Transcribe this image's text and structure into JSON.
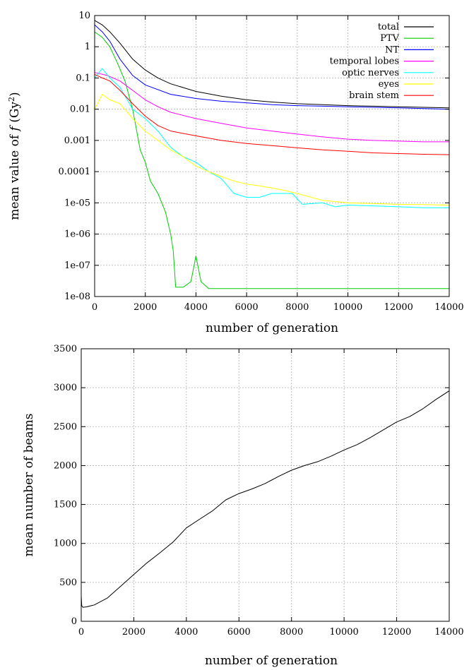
{
  "chart_data": [
    {
      "type": "line",
      "yscale": "log",
      "title": "",
      "xlabel": "number of generation",
      "ylabel": "mean value of f (Gy²)",
      "ylabel_parts": {
        "pre": "mean value of ",
        "var": "f",
        "unit_open": " (Gy",
        "unit_sup": "2",
        "unit_close": ")"
      },
      "xlim": [
        0,
        14000
      ],
      "ylim": [
        1e-08,
        10
      ],
      "grid": true,
      "legend_position": "top-right",
      "x_ticks": [
        0,
        2000,
        4000,
        6000,
        8000,
        10000,
        12000,
        14000
      ],
      "x_tick_labels": [
        "0",
        "2000",
        "4000",
        "6000",
        "8000",
        "10000",
        "12000",
        "14000"
      ],
      "y_ticks": [
        1e-08,
        1e-07,
        1e-06,
        1e-05,
        0.0001,
        0.001,
        0.01,
        0.1,
        1,
        10
      ],
      "y_tick_labels": [
        "1e-08",
        "1e-07",
        "1e-06",
        "1e-05",
        "0.0001",
        "0.001",
        "0.01",
        "0.1",
        "1",
        "10"
      ],
      "series": [
        {
          "name": "total",
          "color": "#000000",
          "x": [
            0,
            300,
            600,
            1000,
            1500,
            2000,
            2500,
            3000,
            4000,
            5000,
            6000,
            7000,
            8000,
            9000,
            10000,
            11000,
            12000,
            13000,
            14000
          ],
          "y": [
            7,
            5,
            3,
            1.3,
            0.4,
            0.18,
            0.1,
            0.065,
            0.037,
            0.026,
            0.02,
            0.017,
            0.015,
            0.014,
            0.013,
            0.0125,
            0.012,
            0.0115,
            0.011
          ]
        },
        {
          "name": "PTV",
          "color": "#00cc00",
          "x": [
            0,
            300,
            600,
            900,
            1200,
            1500,
            1800,
            2000,
            2200,
            2500,
            2800,
            3000,
            3100,
            3200,
            3500,
            3800,
            4000,
            4200,
            4500,
            5000,
            6000,
            7000,
            8000,
            9000,
            10000,
            11000,
            12000,
            13000,
            14000
          ],
          "y": [
            3,
            2,
            1,
            0.3,
            0.08,
            0.01,
            0.0005,
            0.0002,
            5e-05,
            2e-05,
            5e-06,
            1e-06,
            3e-07,
            2e-08,
            2e-08,
            3e-08,
            2e-07,
            3e-08,
            1.8e-08,
            1.8e-08,
            1.8e-08,
            1.8e-08,
            1.8e-08,
            1.8e-08,
            1.8e-08,
            1.8e-08,
            1.8e-08,
            1.8e-08,
            1.8e-08
          ]
        },
        {
          "name": "NT",
          "color": "#0000ff",
          "x": [
            0,
            300,
            600,
            1000,
            1500,
            2000,
            3000,
            4000,
            5000,
            6000,
            7000,
            8000,
            9000,
            10000,
            11000,
            12000,
            13000,
            14000
          ],
          "y": [
            5,
            3,
            1.5,
            0.4,
            0.12,
            0.06,
            0.03,
            0.022,
            0.018,
            0.016,
            0.014,
            0.013,
            0.0125,
            0.012,
            0.0115,
            0.011,
            0.0105,
            0.01
          ]
        },
        {
          "name": "temporal lobes",
          "color": "#ff00ff",
          "x": [
            0,
            500,
            1000,
            1500,
            2000,
            2500,
            3000,
            4000,
            5000,
            6000,
            7000,
            8000,
            9000,
            10000,
            11000,
            12000,
            13000,
            14000
          ],
          "y": [
            0.15,
            0.12,
            0.08,
            0.04,
            0.02,
            0.012,
            0.008,
            0.005,
            0.0035,
            0.0025,
            0.002,
            0.0016,
            0.0013,
            0.0011,
            0.001,
            0.00095,
            0.0009,
            0.0009
          ]
        },
        {
          "name": "optic nerves",
          "color": "#00ffff",
          "x": [
            0,
            300,
            600,
            1000,
            1500,
            2000,
            2500,
            3000,
            3500,
            4000,
            4500,
            5000,
            5500,
            6000,
            6500,
            7000,
            7500,
            7800,
            8200,
            9000,
            9500,
            10000,
            11000,
            12000,
            13000,
            14000
          ],
          "y": [
            0.1,
            0.2,
            0.1,
            0.05,
            0.01,
            0.005,
            0.002,
            0.0006,
            0.0003,
            0.0002,
            0.0001,
            6e-05,
            2e-05,
            1.5e-05,
            1.5e-05,
            2e-05,
            2e-05,
            2e-05,
            9e-06,
            1e-05,
            7.5e-06,
            8.5e-06,
            8e-06,
            7.5e-06,
            7e-06,
            7e-06
          ]
        },
        {
          "name": "eyes",
          "color": "#ffff00",
          "x": [
            0,
            300,
            600,
            1000,
            1500,
            2000,
            2500,
            3000,
            3500,
            4000,
            4500,
            5000,
            5500,
            6000,
            6500,
            7000,
            7500,
            8000,
            9000,
            10000,
            11000,
            12000,
            13000,
            14000
          ],
          "y": [
            0.01,
            0.03,
            0.02,
            0.015,
            0.005,
            0.002,
            0.001,
            0.0005,
            0.0003,
            0.00015,
            0.0001,
            7e-05,
            5e-05,
            4e-05,
            3.5e-05,
            3e-05,
            2.5e-05,
            2e-05,
            1.2e-05,
            1e-05,
            9.5e-06,
            9e-06,
            8.8e-06,
            8.5e-06
          ]
        },
        {
          "name": "brain stem",
          "color": "#ff0000",
          "x": [
            0,
            300,
            600,
            1000,
            1500,
            2000,
            2500,
            3000,
            4000,
            5000,
            6000,
            7000,
            8000,
            9000,
            10000,
            11000,
            12000,
            13000,
            14000
          ],
          "y": [
            0.13,
            0.1,
            0.08,
            0.04,
            0.015,
            0.006,
            0.003,
            0.002,
            0.0014,
            0.001,
            0.0008,
            0.00068,
            0.00058,
            0.0005,
            0.00045,
            0.0004,
            0.00038,
            0.00036,
            0.00035
          ]
        }
      ]
    },
    {
      "type": "line",
      "title": "",
      "xlabel": "number of generation",
      "ylabel": "mean number of beams",
      "xlim": [
        0,
        14000
      ],
      "ylim": [
        0,
        3500
      ],
      "grid": true,
      "x_ticks": [
        0,
        2000,
        4000,
        6000,
        8000,
        10000,
        12000,
        14000
      ],
      "x_tick_labels": [
        "0",
        "2000",
        "4000",
        "6000",
        "8000",
        "10000",
        "12000",
        "14000"
      ],
      "y_ticks": [
        0,
        500,
        1000,
        1500,
        2000,
        2500,
        3000,
        3500
      ],
      "y_tick_labels": [
        "0",
        "500",
        "1000",
        "1500",
        "2000",
        "2500",
        "3000",
        "3500"
      ],
      "series": [
        {
          "color": "#000000",
          "x": [
            0,
            20,
            60,
            200,
            500,
            1000,
            1500,
            2000,
            2500,
            3000,
            3500,
            4000,
            4500,
            5000,
            5500,
            6000,
            6500,
            7000,
            7500,
            8000,
            8500,
            9000,
            9500,
            10000,
            10500,
            11000,
            11500,
            12000,
            12500,
            13000,
            13500,
            14000
          ],
          "y": [
            320,
            200,
            180,
            185,
            210,
            300,
            450,
            600,
            750,
            880,
            1020,
            1200,
            1310,
            1420,
            1560,
            1640,
            1700,
            1770,
            1860,
            1940,
            2000,
            2050,
            2120,
            2200,
            2270,
            2360,
            2460,
            2560,
            2630,
            2730,
            2850,
            2960
          ]
        }
      ]
    }
  ]
}
